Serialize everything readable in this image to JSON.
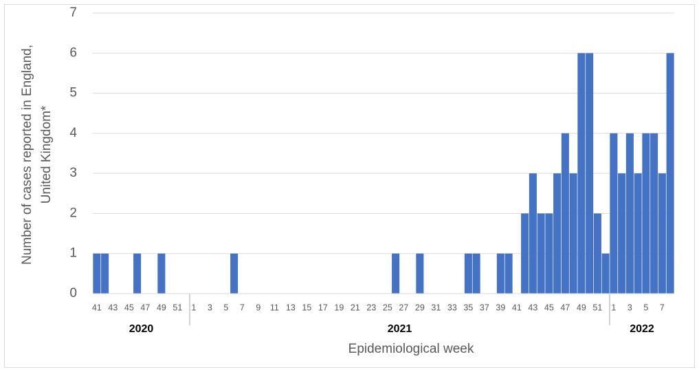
{
  "chart_data": {
    "type": "bar",
    "ylabel": [
      "Number of cases reported in England,",
      "United Kingdom*"
    ],
    "xlabel": "Epidemiological week",
    "color": "#4472c4",
    "ylim": [
      0,
      7
    ],
    "yticks": [
      0,
      1,
      2,
      3,
      4,
      5,
      6,
      7
    ],
    "grid": true,
    "groups": [
      {
        "label": "2020",
        "categories": [
          41,
          null,
          43,
          null,
          45,
          null,
          47,
          null,
          49,
          null,
          51,
          null
        ],
        "values": [
          1,
          1,
          0,
          0,
          0,
          1,
          0,
          0,
          1,
          0,
          0,
          0
        ]
      },
      {
        "label": "2021",
        "categories": [
          1,
          null,
          3,
          null,
          5,
          null,
          7,
          null,
          9,
          null,
          11,
          null,
          13,
          null,
          15,
          null,
          17,
          null,
          19,
          null,
          21,
          null,
          23,
          null,
          25,
          null,
          27,
          null,
          29,
          null,
          31,
          null,
          33,
          null,
          35,
          null,
          37,
          null,
          39,
          null,
          41,
          null,
          43,
          null,
          45,
          null,
          47,
          null,
          49,
          null,
          51,
          null
        ],
        "values": [
          0,
          0,
          0,
          0,
          0,
          1,
          0,
          0,
          0,
          0,
          0,
          0,
          0,
          0,
          0,
          0,
          0,
          0,
          0,
          0,
          0,
          0,
          0,
          0,
          0,
          1,
          0,
          0,
          1,
          0,
          0,
          0,
          0,
          0,
          1,
          1,
          0,
          0,
          1,
          1,
          0,
          2,
          3,
          2,
          2,
          3,
          4,
          3,
          6,
          6,
          2,
          1
        ]
      },
      {
        "label": "2022",
        "categories": [
          1,
          null,
          3,
          null,
          5,
          null,
          7,
          null
        ],
        "values": [
          4,
          3,
          4,
          3,
          4,
          4,
          3,
          6
        ]
      }
    ]
  }
}
